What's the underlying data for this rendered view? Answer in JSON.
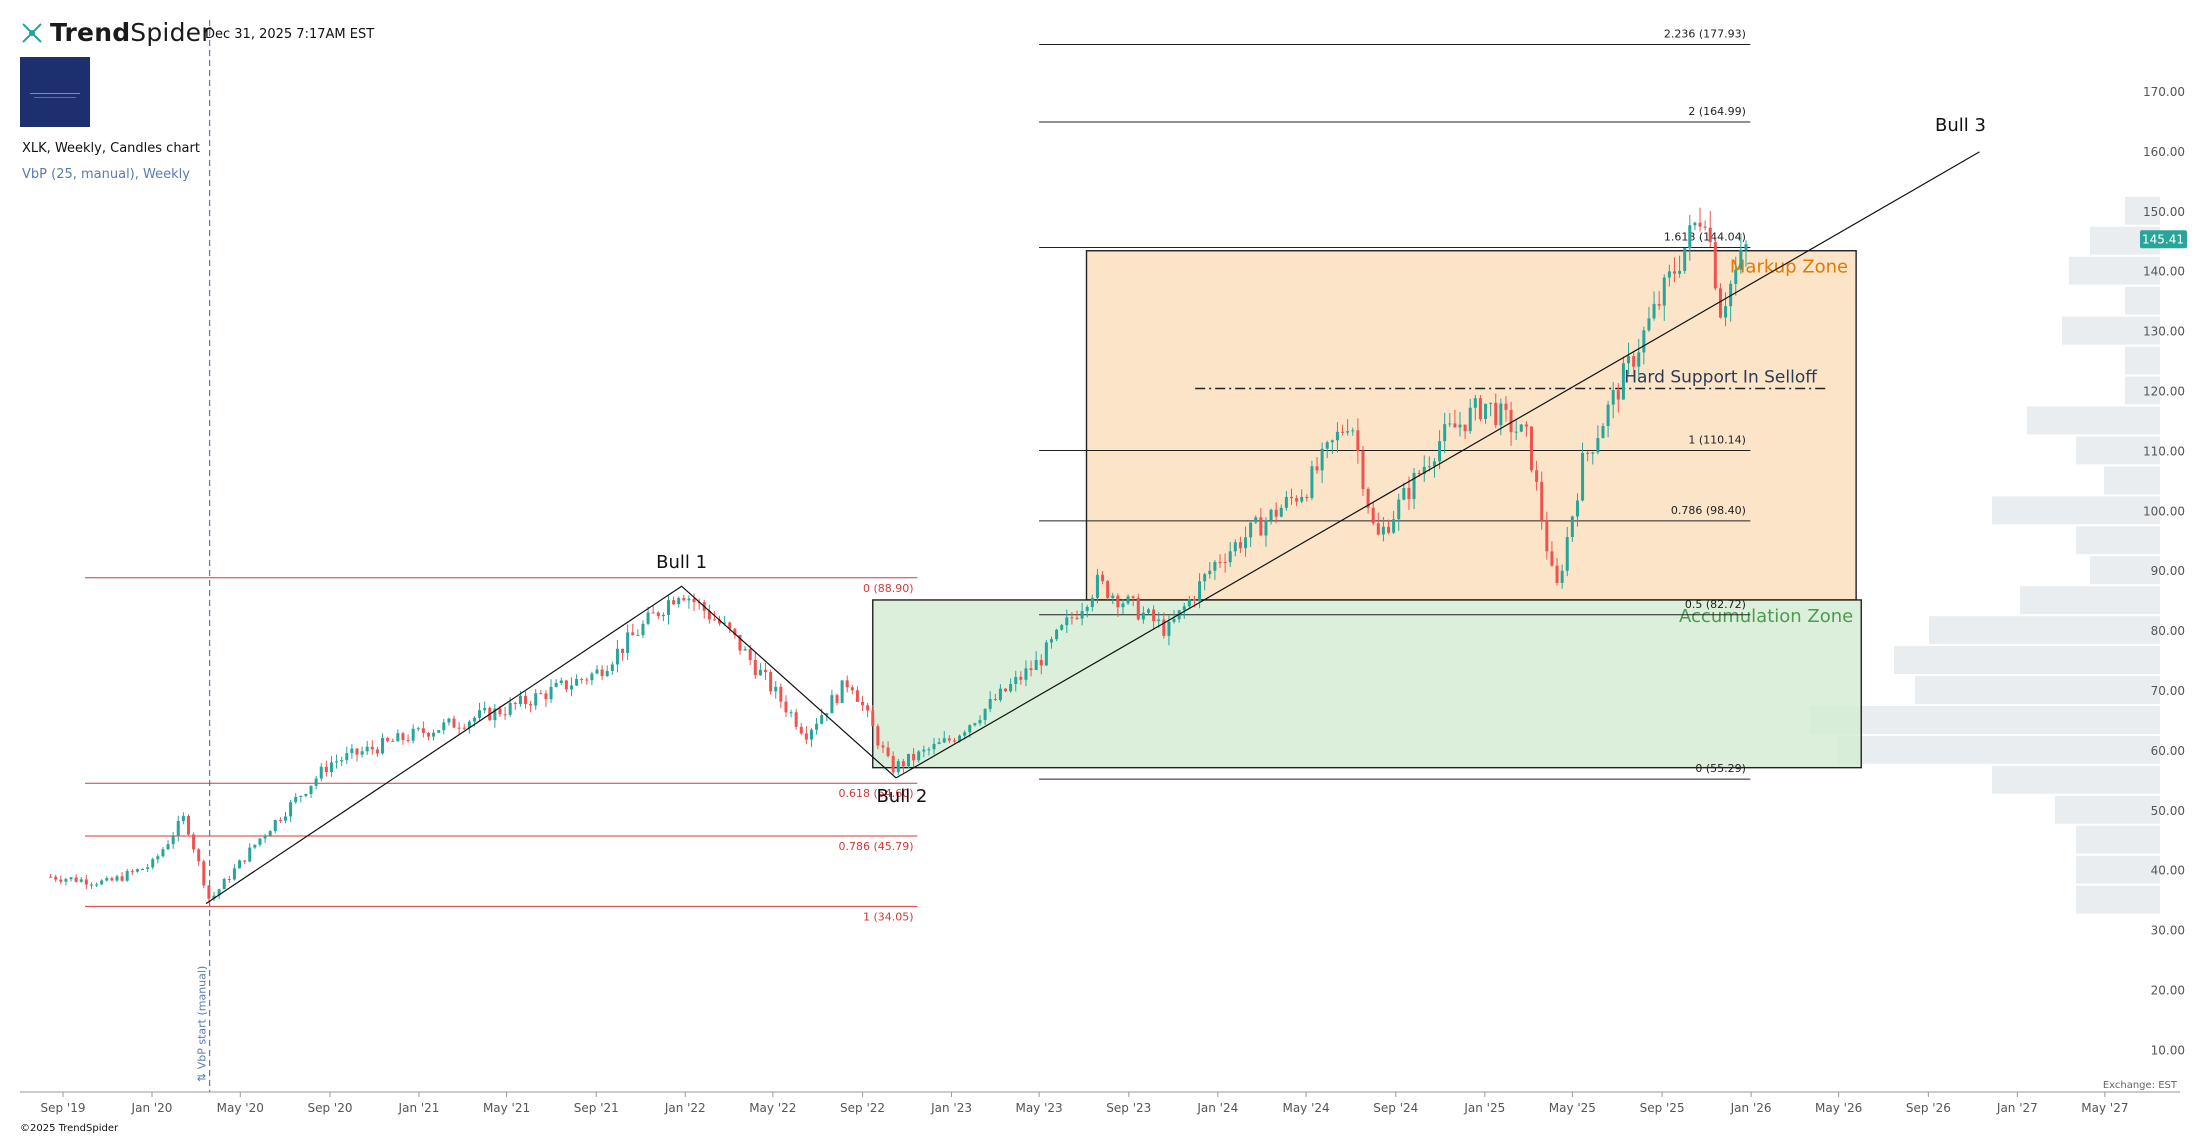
{
  "header": {
    "brand": "TrendSpider",
    "brand_bold": "Trend",
    "brand_light": "Spider",
    "datetime": "Dec 31, 2025 7:17AM EST",
    "symbol_line": "XLK, Weekly, Candles chart",
    "indicator_line": "VbP (25, manual), Weekly"
  },
  "footer": {
    "copyright": "©2025 TrendSpider",
    "exchange": "Exchange: EST"
  },
  "icons": {
    "brand": "trendspider-logo-icon",
    "avatar": "channel-logo"
  },
  "colors": {
    "up": "#26a69a",
    "down": "#ef5350",
    "markup_zone": "#fcdfc0",
    "accumulation_zone": "#d5ecd3",
    "markup_label": "#e07b00",
    "accum_label": "#4c9b50",
    "fib_red": "#d33a3a",
    "price_tag": "#26a69a",
    "vbp": "#e3e7e9"
  },
  "chart_data": {
    "type": "candlestick",
    "interval": "Weekly",
    "symbol": "XLK",
    "last_price": "145.41",
    "ylim": [
      5,
      175
    ],
    "y_ticks": [
      "170.00",
      "160.00",
      "150.00",
      "140.00",
      "130.00",
      "120.00",
      "110.00",
      "100.00",
      "90.00",
      "80.00",
      "70.00",
      "60.00",
      "50.00",
      "40.00",
      "30.00",
      "20.00",
      "10.00"
    ],
    "x_ticks": [
      "Sep '19",
      "Jan '20",
      "May '20",
      "Sep '20",
      "Jan '21",
      "May '21",
      "Sep '21",
      "Jan '22",
      "May '22",
      "Sep '22",
      "Jan '23",
      "May '23",
      "Sep '23",
      "Jan '24",
      "May '24",
      "Sep '24",
      "Jan '25",
      "May '25",
      "Sep '25",
      "Jan '26",
      "May '26",
      "Sep '26",
      "Jan '27",
      "May '27"
    ],
    "price_path": [
      [
        "2019-08-15",
        39
      ],
      [
        "2019-11-01",
        38
      ],
      [
        "2020-01-01",
        41
      ],
      [
        "2020-02-15",
        49
      ],
      [
        "2020-03-20",
        35
      ],
      [
        "2020-06-01",
        46
      ],
      [
        "2020-09-01",
        58
      ],
      [
        "2021-01-01",
        63
      ],
      [
        "2021-05-01",
        67
      ],
      [
        "2021-09-01",
        73
      ],
      [
        "2021-12-25",
        87
      ],
      [
        "2022-03-01",
        80
      ],
      [
        "2022-06-15",
        63
      ],
      [
        "2022-08-15",
        72
      ],
      [
        "2022-10-10",
        57
      ],
      [
        "2023-01-01",
        62
      ],
      [
        "2023-05-01",
        75
      ],
      [
        "2023-07-20",
        88
      ],
      [
        "2023-10-25",
        80
      ],
      [
        "2024-01-01",
        92
      ],
      [
        "2024-05-01",
        104
      ],
      [
        "2024-07-01",
        116
      ],
      [
        "2024-08-05",
        95
      ],
      [
        "2024-11-01",
        112
      ],
      [
        "2025-01-01",
        118
      ],
      [
        "2025-03-01",
        112
      ],
      [
        "2025-04-08",
        86
      ],
      [
        "2025-05-15",
        108
      ],
      [
        "2025-08-01",
        128
      ],
      [
        "2025-10-29",
        151
      ],
      [
        "2025-11-20",
        134
      ],
      [
        "2025-12-31",
        145.41
      ]
    ],
    "vbp_start": "2020-03-20",
    "vbp_start_label": "VbP start (manual)",
    "vbp_profile": [
      {
        "price": 35,
        "volume": 0.12
      },
      {
        "price": 40,
        "volume": 0.12
      },
      {
        "price": 45,
        "volume": 0.12
      },
      {
        "price": 50,
        "volume": 0.15
      },
      {
        "price": 55,
        "volume": 0.24
      },
      {
        "price": 60,
        "volume": 0.46
      },
      {
        "price": 65,
        "volume": 0.5
      },
      {
        "price": 70,
        "volume": 0.35
      },
      {
        "price": 75,
        "volume": 0.38
      },
      {
        "price": 80,
        "volume": 0.33
      },
      {
        "price": 85,
        "volume": 0.2
      },
      {
        "price": 90,
        "volume": 0.1
      },
      {
        "price": 95,
        "volume": 0.12
      },
      {
        "price": 100,
        "volume": 0.24
      },
      {
        "price": 105,
        "volume": 0.08
      },
      {
        "price": 110,
        "volume": 0.12
      },
      {
        "price": 115,
        "volume": 0.19
      },
      {
        "price": 120,
        "volume": 0.05
      },
      {
        "price": 125,
        "volume": 0.05
      },
      {
        "price": 130,
        "volume": 0.14
      },
      {
        "price": 135,
        "volume": 0.05
      },
      {
        "price": 140,
        "volume": 0.13
      },
      {
        "price": 145,
        "volume": 0.1
      },
      {
        "price": 150,
        "volume": 0.05
      }
    ],
    "fib_red": {
      "from": "2020-03-20",
      "to": "2022-10-10",
      "levels": [
        {
          "label": "0 (88.90)",
          "price": 88.9
        },
        {
          "label": "0.618 (54.60)",
          "price": 54.6
        },
        {
          "label": "0.786 (45.79)",
          "price": 45.79
        },
        {
          "label": "1 (34.05)",
          "price": 34.05
        }
      ]
    },
    "fib_black": {
      "from": "2023-05-01",
      "to": "2025-12-31",
      "levels": [
        {
          "label": "2.236 (177.93)",
          "price": 177.93
        },
        {
          "label": "2 (164.99)",
          "price": 164.99
        },
        {
          "label": "1.618 (144.04)",
          "price": 144.04
        },
        {
          "label": "1 (110.14)",
          "price": 110.14
        },
        {
          "label": "0.786 (98.40)",
          "price": 98.4
        },
        {
          "label": "0.5 (82.72)",
          "price": 82.72
        },
        {
          "label": "0 (55.29)",
          "price": 55.29
        }
      ]
    },
    "zones": [
      {
        "label": "Markup Zone",
        "from": "2023-07-05",
        "to": "2026-05-25",
        "top": 143.5,
        "bottom": 85.2
      },
      {
        "label": "Accumulation Zone",
        "from": "2022-09-15",
        "to": "2026-06-01",
        "top": 85.2,
        "bottom": 57.2
      }
    ],
    "support": {
      "label": "Hard Support In Selloff",
      "from": "2023-12-01",
      "to": "2026-04-15",
      "price": 120.5
    },
    "trendlines": [
      {
        "points": [
          [
            "2020-03-15",
            34.5
          ],
          [
            "2021-12-27",
            87.5
          ],
          [
            "2022-10-17",
            55.5
          ]
        ]
      },
      {
        "points": [
          [
            "2022-10-17",
            55.5
          ],
          [
            "2026-11-10",
            160
          ]
        ]
      }
    ],
    "annotations": [
      {
        "label": "Bull 1",
        "date": "2021-12-27",
        "price": 90.5
      },
      {
        "label": "Bull 2",
        "date": "2022-10-25",
        "price": 51.5
      },
      {
        "label": "Bull 3",
        "date": "2026-10-15",
        "price": 163.5
      }
    ]
  }
}
